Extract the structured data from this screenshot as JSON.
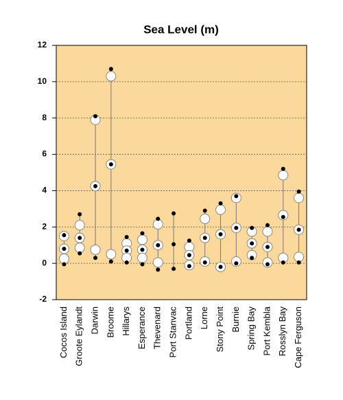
{
  "chart_data": {
    "type": "range-dot",
    "title": "Sea Level (m)",
    "categories": [
      "Cocos Island",
      "Groote Eylandt",
      "Darwin",
      "Broome",
      "Hillarys",
      "Esperance",
      "Thevenard",
      "Port Stanvac",
      "Portland",
      "Lorne",
      "Stony Point",
      "Burnie",
      "Spring Bay",
      "Port Kembla",
      "Rosslyn Bay",
      "Cape Ferguson"
    ],
    "series": [
      {
        "color": "#000000",
        "marker": "dot",
        "values": [
          1.55,
          2.7,
          8.1,
          10.7,
          1.45,
          1.65,
          2.45,
          2.75,
          1.25,
          2.9,
          3.3,
          3.7,
          1.95,
          2.1,
          5.2,
          3.95
        ]
      },
      {
        "color": "#ffffff",
        "marker": "circle",
        "values": [
          1.5,
          2.1,
          7.9,
          10.3,
          1.1,
          1.3,
          2.15,
          null,
          0.9,
          2.45,
          2.95,
          3.6,
          1.75,
          1.75,
          4.85,
          3.6
        ]
      },
      {
        "color": "#ffffff",
        "marker": "circle",
        "values": [
          0.8,
          1.4,
          4.25,
          5.45,
          0.7,
          0.75,
          1.0,
          null,
          0.45,
          1.4,
          1.6,
          1.95,
          1.1,
          0.9,
          2.65,
          1.85
        ]
      },
      {
        "color": "#000000",
        "marker": "dot",
        "values": [
          0.8,
          1.4,
          4.25,
          5.45,
          0.7,
          0.75,
          1.0,
          1.05,
          0.45,
          1.4,
          1.6,
          1.95,
          1.1,
          0.9,
          2.55,
          1.85
        ]
      },
      {
        "color": "#ffffff",
        "marker": "circle",
        "values": [
          0.25,
          0.85,
          0.75,
          0.5,
          0.3,
          0.3,
          0.05,
          null,
          -0.1,
          0.1,
          -0.2,
          0.1,
          0.45,
          0.05,
          0.3,
          0.35
        ]
      },
      {
        "color": "#000000",
        "marker": "dot",
        "values": [
          -0.05,
          0.55,
          0.3,
          0.1,
          0.05,
          -0.05,
          -0.35,
          -0.3,
          -0.15,
          0.05,
          -0.2,
          0.0,
          0.3,
          -0.05,
          0.05,
          0.05
        ]
      }
    ],
    "ylim": [
      -2,
      12
    ],
    "yticks": [
      -2,
      0,
      2,
      4,
      6,
      8,
      10,
      12
    ],
    "grid": true,
    "background": "#fbd89c"
  }
}
